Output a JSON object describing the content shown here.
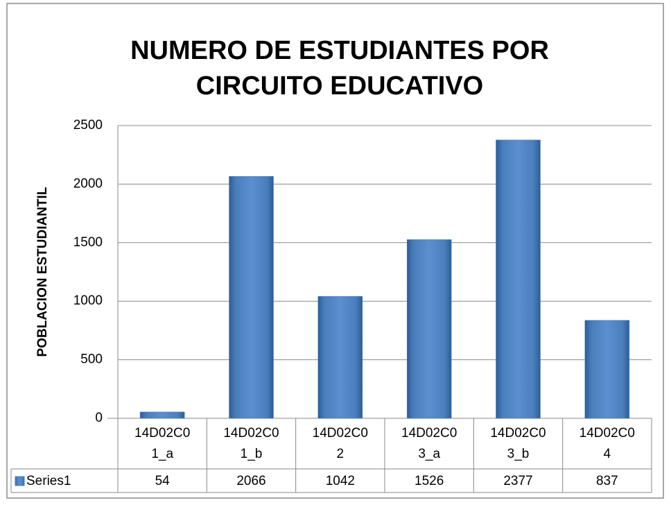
{
  "chart_data": {
    "type": "bar",
    "title": [
      "NUMERO DE ESTUDIANTES POR",
      "CIRCUITO EDUCATIVO"
    ],
    "y_label": "POBLACION ESTUDIANTIL",
    "categories": [
      "14D02C01_a",
      "14D02C01_b",
      "14D02C02",
      "14D02C03_a",
      "14D02C03_b",
      "14D02C04"
    ],
    "series": [
      {
        "name": "Series1",
        "color": "#4a7ebb",
        "values": [
          54,
          2066,
          1042,
          1526,
          2377,
          837
        ]
      }
    ],
    "ylim": [
      0,
      2500
    ],
    "yticks": [
      0,
      500,
      1000,
      1500,
      2000,
      2500
    ],
    "grid": true,
    "data_table": true
  }
}
